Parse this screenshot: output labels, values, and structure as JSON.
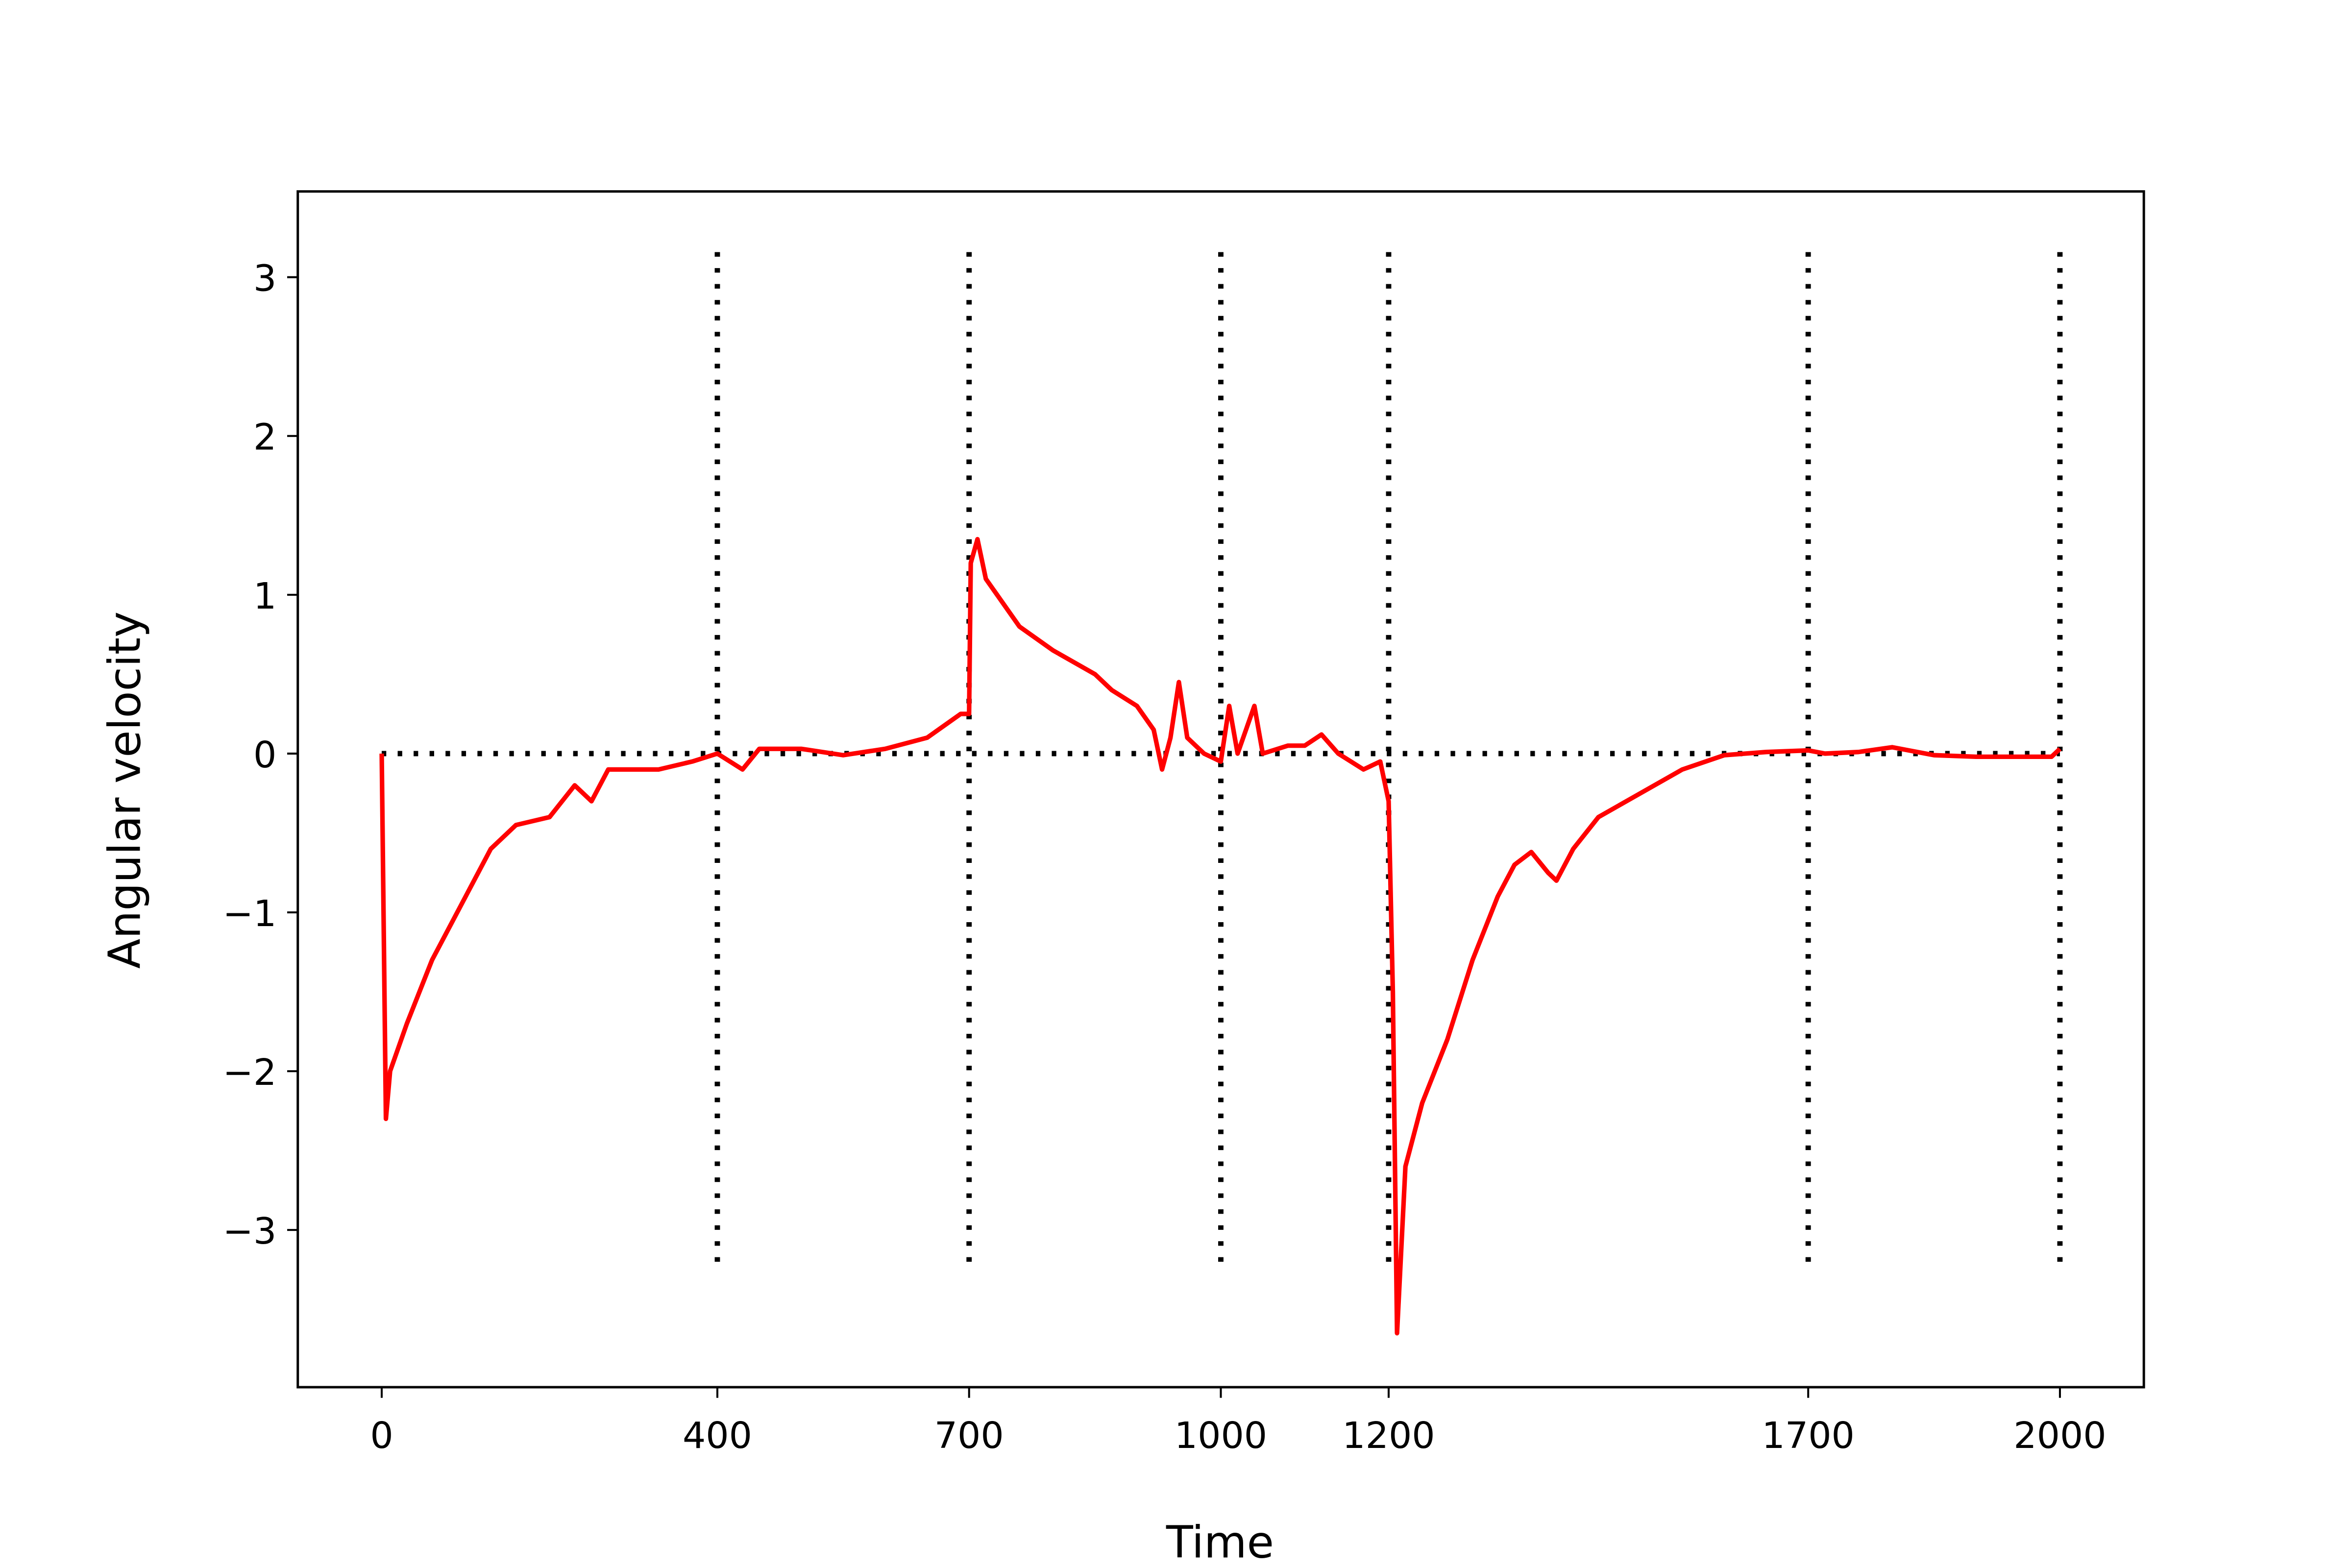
{
  "chart_data": {
    "type": "line",
    "x_label": "Time",
    "y_label": "Angular velocity",
    "x": [
      0,
      5,
      10,
      30,
      60,
      100,
      130,
      160,
      200,
      230,
      250,
      270,
      300,
      330,
      370,
      400,
      430,
      450,
      500,
      550,
      600,
      650,
      690,
      700,
      702,
      710,
      720,
      740,
      760,
      800,
      850,
      870,
      900,
      920,
      930,
      940,
      950,
      960,
      980,
      1000,
      1010,
      1020,
      1040,
      1050,
      1080,
      1100,
      1120,
      1140,
      1170,
      1190,
      1200,
      1205,
      1210,
      1220,
      1240,
      1270,
      1300,
      1330,
      1350,
      1370,
      1390,
      1400,
      1420,
      1450,
      1500,
      1550,
      1600,
      1650,
      1700,
      1720,
      1760,
      1800,
      1850,
      1900,
      1950,
      1990,
      2000
    ],
    "series": [
      {
        "color": "#ff0000",
        "values": [
          0,
          -2.3,
          -2.0,
          -1.7,
          -1.3,
          -0.9,
          -0.6,
          -0.45,
          -0.4,
          -0.2,
          -0.3,
          -0.1,
          -0.1,
          -0.1,
          -0.05,
          0,
          -0.1,
          0.03,
          0.03,
          -0.01,
          0.03,
          0.1,
          0.25,
          0.25,
          1.2,
          1.35,
          1.1,
          0.95,
          0.8,
          0.65,
          0.5,
          0.4,
          0.3,
          0.15,
          -0.1,
          0.1,
          0.45,
          0.1,
          0.0,
          -0.05,
          0.3,
          0.0,
          0.3,
          0.0,
          0.05,
          0.05,
          0.12,
          0.0,
          -0.1,
          -0.05,
          -0.3,
          -1.5,
          -3.65,
          -2.6,
          -2.2,
          -1.8,
          -1.3,
          -0.9,
          -0.7,
          -0.62,
          -0.75,
          -0.8,
          -0.6,
          -0.4,
          -0.25,
          -0.1,
          -0.01,
          0.01,
          0.02,
          0.0,
          0.01,
          0.04,
          -0.01,
          -0.02,
          -0.02,
          -0.02,
          0.03
        ]
      }
    ],
    "vlines": {
      "x": [
        400,
        700,
        1000,
        1200,
        1700,
        2000
      ],
      "ymin": -3.2,
      "ymax": 3.2,
      "color": "#000000"
    },
    "hlines": {
      "y": [
        0
      ],
      "xmin": 0,
      "xmax": 2000,
      "color": "#000000"
    },
    "xlim": [
      -100,
      2100
    ],
    "ylim": [
      -3.99,
      3.54
    ],
    "xticks": [
      0,
      400,
      700,
      1000,
      1200,
      1700,
      2000
    ],
    "yticks": [
      {
        "value": -3,
        "label": "−3"
      },
      {
        "value": -2,
        "label": "−2"
      },
      {
        "value": -1,
        "label": "−1"
      },
      0,
      1,
      2,
      3
    ]
  }
}
